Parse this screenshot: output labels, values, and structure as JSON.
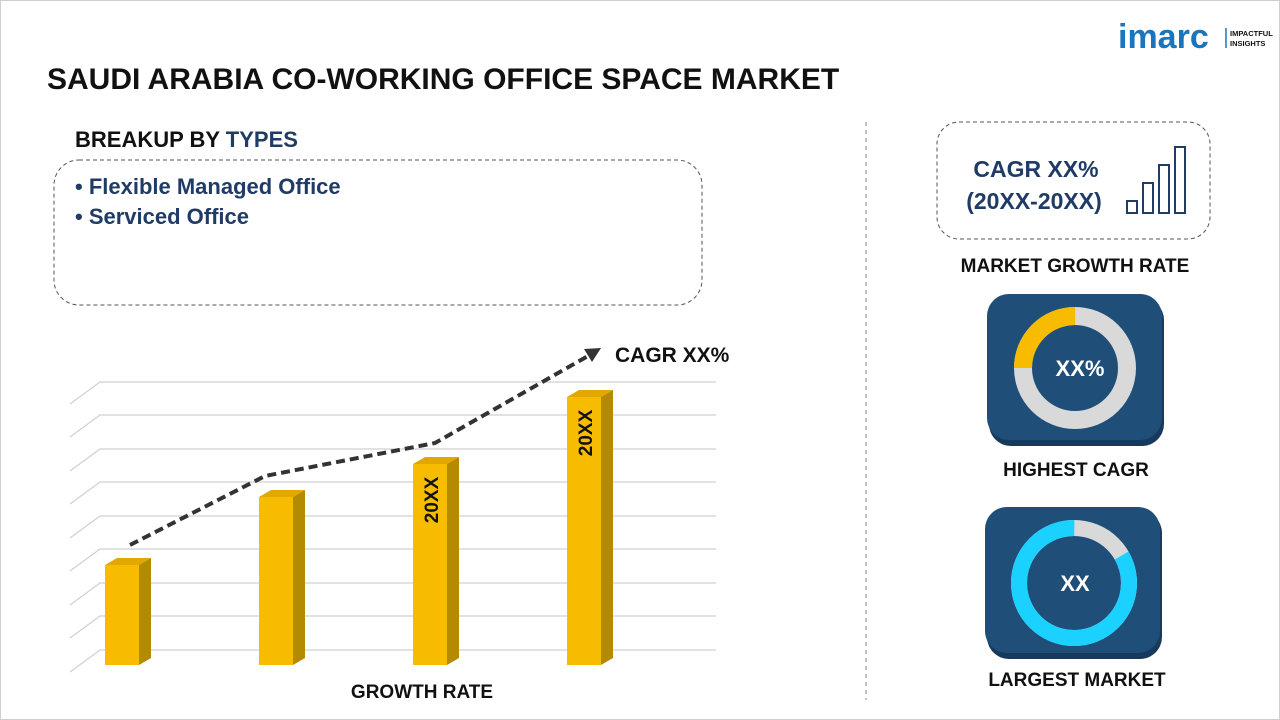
{
  "header": {
    "title": "SAUDI ARABIA CO-WORKING OFFICE SPACE MARKET",
    "logo": {
      "name": "imarc",
      "tagline_line1": "IMPACTFUL",
      "tagline_line2": "INSIGHTS"
    }
  },
  "breakup": {
    "heading_prefix": "BREAKUP BY",
    "heading_highlight": "TYPES",
    "items": [
      "• Flexible Managed Office",
      "• Serviced Office"
    ]
  },
  "growth_chart": {
    "cagr_label": "CAGR XX%",
    "bar_labels": [
      "20XX",
      "20XX"
    ],
    "x_axis_label": "GROWTH RATE"
  },
  "market_growth": {
    "cagr": "CAGR XX%",
    "period": "(20XX-20XX)",
    "caption": "MARKET GROWTH RATE"
  },
  "highest_cagr": {
    "value": "XX%",
    "caption": "HIGHEST CAGR"
  },
  "largest_market": {
    "value": "XX",
    "caption": "LARGEST MARKET"
  }
}
